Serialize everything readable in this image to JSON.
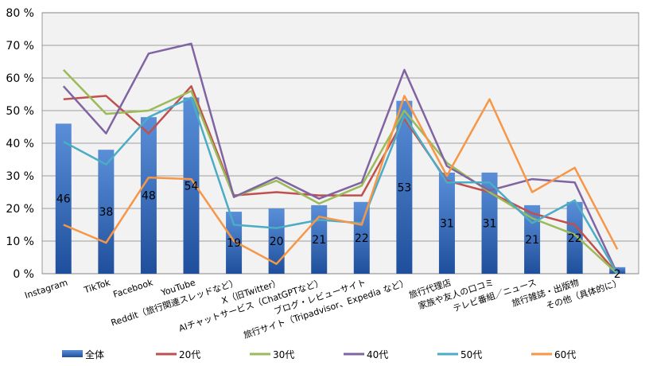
{
  "chart_data": {
    "type": "bar+line",
    "categories": [
      "Instagram",
      "TikTok",
      "Facebook",
      "YouTube",
      "Reddit（旅行関連スレッドなど）",
      "X（旧Twitter）",
      "AIチャットサービス（ChatGPTなど）",
      "ブログ・レビューサイト",
      "旅行サイト（Tripadvisor、Expedia など）",
      "旅行代理店",
      "家族や友人の口コミ",
      "テレビ番組／ニュース",
      "旅行雑誌・出版物",
      "その他（具体的に）"
    ],
    "y_ticks": [
      "0 %",
      "10 %",
      "20 %",
      "30 %",
      "40 %",
      "50 %",
      "60 %",
      "70 %",
      "80 %"
    ],
    "ylim": [
      0,
      80
    ],
    "bar_series": {
      "name": "全体",
      "color": "#3b73c4",
      "values": [
        46,
        38,
        48,
        54,
        19,
        20,
        21,
        22,
        53,
        31,
        31,
        21,
        22,
        2
      ],
      "labels": [
        "46",
        "38",
        "48",
        "54",
        "19",
        "20",
        "21",
        "22",
        "53",
        "31",
        "31",
        "21",
        "22",
        "2"
      ]
    },
    "line_series": [
      {
        "name": "20代",
        "color": "#c0504d",
        "values": [
          53.5,
          54.5,
          43,
          57.5,
          24,
          25,
          24,
          24,
          47.5,
          28.5,
          25,
          18.5,
          15,
          0
        ]
      },
      {
        "name": "30代",
        "color": "#9bbb59",
        "values": [
          62.5,
          49,
          50,
          56,
          23.5,
          28.5,
          21.5,
          27,
          50,
          34,
          25,
          17,
          12,
          0
        ]
      },
      {
        "name": "40代",
        "color": "#8064a2",
        "values": [
          57.5,
          43,
          67.5,
          70.5,
          23.5,
          29.5,
          23,
          28,
          62.5,
          33,
          25.5,
          29,
          28,
          0
        ]
      },
      {
        "name": "50代",
        "color": "#4bacc6",
        "values": [
          40.5,
          33.5,
          48,
          54,
          15,
          14,
          16.5,
          15.5,
          48.5,
          28,
          28,
          15.5,
          22.5,
          0
        ]
      },
      {
        "name": "60代",
        "color": "#f79646",
        "values": [
          15,
          9.5,
          29.5,
          29,
          10,
          3,
          17.5,
          15,
          54.5,
          30,
          53.5,
          25,
          32.5,
          7.5
        ]
      }
    ],
    "legend": [
      "全体",
      "20代",
      "30代",
      "40代",
      "50代",
      "60代"
    ],
    "legend_position": "bottom",
    "grid": true
  }
}
